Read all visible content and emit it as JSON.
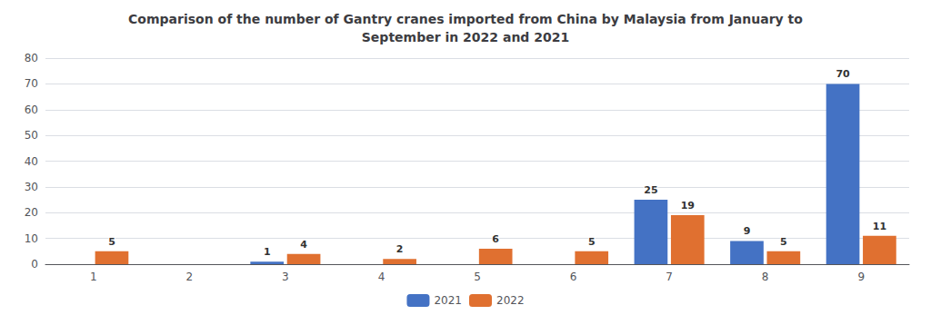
{
  "chart_data": {
    "type": "bar",
    "title": "Comparison of the number of Gantry cranes imported from China by Malaysia from January to\nSeptember in 2022 and 2021",
    "categories": [
      "1",
      "2",
      "3",
      "4",
      "5",
      "6",
      "7",
      "8",
      "9"
    ],
    "series": [
      {
        "name": "2021",
        "color": "#4472C4",
        "values": [
          0,
          0,
          1,
          0,
          0,
          0,
          25,
          9,
          70
        ]
      },
      {
        "name": "2022",
        "color": "#E07030",
        "values": [
          5,
          0,
          4,
          2,
          6,
          5,
          19,
          5,
          11
        ]
      }
    ],
    "ylim": [
      0,
      80
    ],
    "yticks": [
      0,
      10,
      20,
      30,
      40,
      50,
      60,
      70,
      80
    ],
    "grid": true,
    "legend": "bottom",
    "data_labels": true
  }
}
